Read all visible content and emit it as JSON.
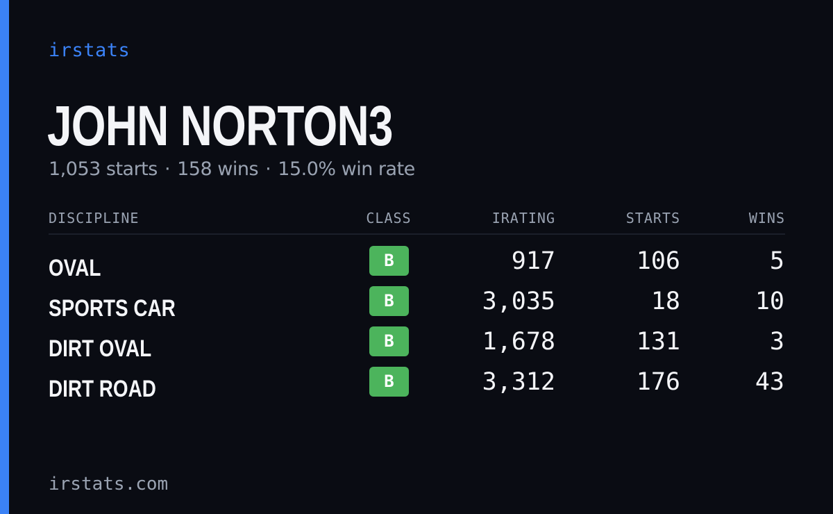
{
  "brand": "irstats",
  "player": {
    "name": "JOHN NORTON3",
    "starts": "1,053 starts",
    "wins": "158 wins",
    "win_rate": "15.0% win rate",
    "separator": "·"
  },
  "table": {
    "headers": {
      "discipline": "DISCIPLINE",
      "class": "CLASS",
      "irating": "IRATING",
      "starts": "STARTS",
      "wins": "WINS"
    },
    "rows": [
      {
        "discipline": "OVAL",
        "class": "B",
        "irating": "917",
        "starts": "106",
        "wins": "5"
      },
      {
        "discipline": "SPORTS CAR",
        "class": "B",
        "irating": "3,035",
        "starts": "18",
        "wins": "10"
      },
      {
        "discipline": "DIRT OVAL",
        "class": "B",
        "irating": "1,678",
        "starts": "131",
        "wins": "3"
      },
      {
        "discipline": "DIRT ROAD",
        "class": "B",
        "irating": "3,312",
        "starts": "176",
        "wins": "43"
      }
    ]
  },
  "footer": "irstats.com",
  "colors": {
    "accent": "#3b82f6",
    "background": "#0a0c13",
    "class_b": "#4cb45c"
  }
}
